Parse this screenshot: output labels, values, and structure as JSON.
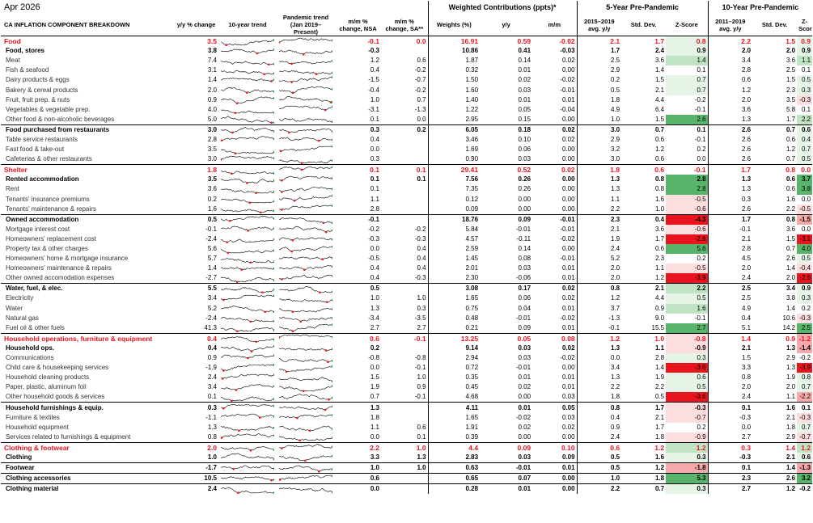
{
  "date": "Apr 2026",
  "group_headers": {
    "weights": "Weighted Contributions (ppts)*",
    "five_year": "5-Year Pre-Pandemic",
    "ten_year": "10-Year Pre-Pandemic"
  },
  "columns": {
    "label": "CA INFLATION COMPONENT BREAKDOWN",
    "yy": "y/y % change",
    "trend10": "10-year trend",
    "pandemic": "Pandemic trend (Jan 2019–Present)",
    "mm_nsa": "m/m % change, NSA",
    "mm_sa": "m/m % change, SA**",
    "weights": "Weights (%)",
    "w_yy": "y/y",
    "w_mm": "m/m",
    "avg5": "2015–2019 avg. y/y",
    "sd5": "Std. Dev.",
    "z5": "Z-Score",
    "avg10": "2011–2019 avg. y/y",
    "sd10": "Std. Dev.",
    "z10": "Z-Score"
  },
  "colors": {
    "red": "#e8141e",
    "green_strong": "#1e9a3c",
    "green_light": "#d6efd8",
    "red_strong": "#e8141e",
    "red_light": "#fbd8d8"
  },
  "rows": [
    {
      "label": "Food",
      "level": 0,
      "sep": "none",
      "yy": "3.5",
      "mm_nsa": "-0.1",
      "mm_sa": "0.0",
      "w": "16.91",
      "wyy": "0.59",
      "wmm": "-0.02",
      "a5": "2.1",
      "s5": "1.7",
      "z5": "0.8",
      "a10": "2.2",
      "s10": "1.5",
      "z10": "0.9"
    },
    {
      "label": "Food, stores",
      "level": 1,
      "yy": "3.8",
      "mm_nsa": "-0.3",
      "mm_sa": "",
      "w": "10.86",
      "wyy": "0.41",
      "wmm": "-0.03",
      "a5": "1.7",
      "s5": "2.4",
      "z5": "0.9",
      "a10": "2.0",
      "s10": "2.0",
      "z10": "0.9"
    },
    {
      "label": "Meat",
      "level": 2,
      "yy": "7.4",
      "mm_nsa": "1.2",
      "mm_sa": "0.6",
      "w": "1.87",
      "wyy": "0.14",
      "wmm": "0.02",
      "a5": "2.5",
      "s5": "3.6",
      "z5": "1.4",
      "a10": "3.4",
      "s10": "3.6",
      "z10": "1.1"
    },
    {
      "label": "Fish & seafood",
      "level": 2,
      "yy": "3.1",
      "mm_nsa": "0.4",
      "mm_sa": "-0.2",
      "w": "0.32",
      "wyy": "0.01",
      "wmm": "0.00",
      "a5": "2.9",
      "s5": "1.4",
      "z5": "0.1",
      "a10": "2.8",
      "s10": "2.5",
      "z10": "0.1"
    },
    {
      "label": "Dairy products & eggs",
      "level": 2,
      "yy": "1.4",
      "mm_nsa": "-1.5",
      "mm_sa": "-0.7",
      "w": "1.50",
      "wyy": "0.02",
      "wmm": "-0.02",
      "a5": "0.2",
      "s5": "1.5",
      "z5": "0.7",
      "a10": "0.6",
      "s10": "1.5",
      "z10": "0.5"
    },
    {
      "label": "Bakery & cereal products",
      "level": 2,
      "yy": "2.0",
      "mm_nsa": "-0.4",
      "mm_sa": "-0.2",
      "w": "1.60",
      "wyy": "0.03",
      "wmm": "-0.01",
      "a5": "0.5",
      "s5": "2.1",
      "z5": "0.7",
      "a10": "1.2",
      "s10": "2.3",
      "z10": "0.3"
    },
    {
      "label": "Fruit, fruit prep. & nuts",
      "level": 2,
      "yy": "0.9",
      "mm_nsa": "1.0",
      "mm_sa": "0.7",
      "w": "1.40",
      "wyy": "0.01",
      "wmm": "0.01",
      "a5": "1.8",
      "s5": "4.4",
      "z5": "-0.2",
      "a10": "2.0",
      "s10": "3.5",
      "z10": "-0.3"
    },
    {
      "label": "Vegetables & vegetable prep.",
      "level": 2,
      "yy": "4.0",
      "mm_nsa": "-3.1",
      "mm_sa": "-1.3",
      "w": "1.22",
      "wyy": "0.05",
      "wmm": "-0.04",
      "a5": "4.9",
      "s5": "6.4",
      "z5": "-0.1",
      "a10": "3.6",
      "s10": "5.8",
      "z10": "0.1"
    },
    {
      "label": "Other food & non-alcoholic beverages",
      "level": 2,
      "yy": "5.0",
      "mm_nsa": "0.1",
      "mm_sa": "0.0",
      "w": "2.95",
      "wyy": "0.15",
      "wmm": "0.00",
      "a5": "1.0",
      "s5": "1.5",
      "z5": "2.6",
      "a10": "1.3",
      "s10": "1.7",
      "z10": "2.2"
    },
    {
      "label": "Food purchased from restaurants",
      "level": 1,
      "sep": "thin",
      "yy": "3.0",
      "mm_nsa": "0.3",
      "mm_sa": "0.2",
      "w": "6.05",
      "wyy": "0.18",
      "wmm": "0.02",
      "a5": "3.0",
      "s5": "0.7",
      "z5": "0.1",
      "a10": "2.6",
      "s10": "0.7",
      "z10": "0.6"
    },
    {
      "label": "Table service restaurants",
      "level": 2,
      "yy": "2.8",
      "mm_nsa": "0.4",
      "mm_sa": "",
      "w": "3.46",
      "wyy": "0.10",
      "wmm": "0.02",
      "a5": "2.9",
      "s5": "0.6",
      "z5": "-0.1",
      "a10": "2.6",
      "s10": "0.6",
      "z10": "0.4"
    },
    {
      "label": "Fast food & take-out",
      "level": 2,
      "yy": "3.5",
      "mm_nsa": "0.0",
      "mm_sa": "",
      "w": "1.69",
      "wyy": "0.06",
      "wmm": "0.00",
      "a5": "3.2",
      "s5": "1.2",
      "z5": "0.2",
      "a10": "2.6",
      "s10": "1.2",
      "z10": "0.7"
    },
    {
      "label": "Cafeterias & other restaurants",
      "level": 2,
      "yy": "3.0",
      "mm_nsa": "0.3",
      "mm_sa": "",
      "w": "0.90",
      "wyy": "0.03",
      "wmm": "0.00",
      "a5": "3.0",
      "s5": "0.6",
      "z5": "0.0",
      "a10": "2.6",
      "s10": "0.7",
      "z10": "0.5"
    },
    {
      "label": "Shelter",
      "level": 0,
      "sep": "sep",
      "yy": "1.8",
      "mm_nsa": "0.1",
      "mm_sa": "0.1",
      "w": "29.41",
      "wyy": "0.52",
      "wmm": "0.02",
      "a5": "1.8",
      "s5": "0.6",
      "z5": "-0.1",
      "a10": "1.7",
      "s10": "0.8",
      "z10": "0.0"
    },
    {
      "label": "Rented accommodation",
      "level": 1,
      "yy": "3.5",
      "mm_nsa": "0.1",
      "mm_sa": "0.1",
      "w": "7.56",
      "wyy": "0.26",
      "wmm": "0.00",
      "a5": "1.3",
      "s5": "0.8",
      "z5": "2.8",
      "a10": "1.3",
      "s10": "0.6",
      "z10": "3.7"
    },
    {
      "label": "Rent",
      "level": 2,
      "yy": "3.6",
      "mm_nsa": "0.1",
      "mm_sa": "",
      "w": "7.35",
      "wyy": "0.26",
      "wmm": "0.00",
      "a5": "1.3",
      "s5": "0.8",
      "z5": "2.8",
      "a10": "1.3",
      "s10": "0.6",
      "z10": "3.8"
    },
    {
      "label": "Tenants' insurance premiums",
      "level": 2,
      "yy": "0.2",
      "mm_nsa": "1.1",
      "mm_sa": "",
      "w": "0.12",
      "wyy": "0.00",
      "wmm": "0.00",
      "a5": "1.1",
      "s5": "1.6",
      "z5": "-0.5",
      "a10": "0.3",
      "s10": "1.6",
      "z10": "0.0"
    },
    {
      "label": "Tenants' maintenance & repairs",
      "level": 2,
      "yy": "1.6",
      "mm_nsa": "2.8",
      "mm_sa": "",
      "w": "0.09",
      "wyy": "0.00",
      "wmm": "0.00",
      "a5": "2.2",
      "s5": "1.0",
      "z5": "-0.6",
      "a10": "2.6",
      "s10": "2.2",
      "z10": "-0.5"
    },
    {
      "label": "Owned accommodation",
      "level": 1,
      "sep": "thin",
      "yy": "0.5",
      "mm_nsa": "-0.1",
      "mm_sa": "",
      "w": "18.76",
      "wyy": "0.09",
      "wmm": "-0.01",
      "a5": "2.3",
      "s5": "0.4",
      "z5": "-4.3",
      "a10": "1.7",
      "s10": "0.8",
      "z10": "-1.5"
    },
    {
      "label": "Mortgage interest cost",
      "level": 2,
      "yy": "-0.1",
      "mm_nsa": "-0.2",
      "mm_sa": "-0.2",
      "w": "5.84",
      "wyy": "-0.01",
      "wmm": "-0.01",
      "a5": "2.1",
      "s5": "3.6",
      "z5": "-0.6",
      "a10": "-0.1",
      "s10": "3.6",
      "z10": "0.0"
    },
    {
      "label": "Homeowners' replacement cost",
      "level": 2,
      "yy": "-2.4",
      "mm_nsa": "-0.3",
      "mm_sa": "-0.3",
      "w": "4.57",
      "wyy": "-0.11",
      "wmm": "-0.02",
      "a5": "1.9",
      "s5": "1.7",
      "z5": "-2.6",
      "a10": "2.1",
      "s10": "1.5",
      "z10": "-3.1"
    },
    {
      "label": "Property tax & other charges",
      "level": 2,
      "yy": "5.6",
      "mm_nsa": "0.0",
      "mm_sa": "0.4",
      "w": "2.59",
      "wyy": "0.14",
      "wmm": "0.00",
      "a5": "2.4",
      "s5": "0.6",
      "z5": "5.6",
      "a10": "2.8",
      "s10": "0.7",
      "z10": "4.0"
    },
    {
      "label": "Homeowners' home & mortgage insurance",
      "level": 2,
      "yy": "5.7",
      "mm_nsa": "-0.5",
      "mm_sa": "0.4",
      "w": "1.45",
      "wyy": "0.08",
      "wmm": "-0.01",
      "a5": "5.2",
      "s5": "2.3",
      "z5": "0.2",
      "a10": "4.5",
      "s10": "2.6",
      "z10": "0.5"
    },
    {
      "label": "Homeowners' maintenance & repairs",
      "level": 2,
      "yy": "1.4",
      "mm_nsa": "0.4",
      "mm_sa": "0.4",
      "w": "2.01",
      "wyy": "0.03",
      "wmm": "0.01",
      "a5": "2.0",
      "s5": "1.1",
      "z5": "-0.5",
      "a10": "2.0",
      "s10": "1.4",
      "z10": "-0.4"
    },
    {
      "label": "Other owned accomodation expenses",
      "level": 2,
      "yy": "-2.7",
      "mm_nsa": "0.4",
      "mm_sa": "-0.3",
      "w": "2.30",
      "wyy": "-0.06",
      "wmm": "0.01",
      "a5": "2.0",
      "s5": "1.2",
      "z5": "-3.9",
      "a10": "2.4",
      "s10": "2.0",
      "z10": "-2.6"
    },
    {
      "label": "Water, fuel, & elec.",
      "level": 1,
      "sep": "thin",
      "yy": "5.5",
      "mm_nsa": "0.5",
      "mm_sa": "",
      "w": "3.08",
      "wyy": "0.17",
      "wmm": "0.02",
      "a5": "0.8",
      "s5": "2.1",
      "z5": "2.2",
      "a10": "2.5",
      "s10": "3.4",
      "z10": "0.9"
    },
    {
      "label": "Electricity",
      "level": 2,
      "yy": "3.4",
      "mm_nsa": "1.0",
      "mm_sa": "1.0",
      "w": "1.65",
      "wyy": "0.06",
      "wmm": "0.02",
      "a5": "1.2",
      "s5": "4.4",
      "z5": "0.5",
      "a10": "2.5",
      "s10": "3.8",
      "z10": "0.3"
    },
    {
      "label": "Water",
      "level": 2,
      "yy": "5.2",
      "mm_nsa": "1.3",
      "mm_sa": "0.3",
      "w": "0.75",
      "wyy": "0.04",
      "wmm": "0.01",
      "a5": "3.7",
      "s5": "0.9",
      "z5": "1.6",
      "a10": "4.9",
      "s10": "1.4",
      "z10": "0.2"
    },
    {
      "label": "Natural gas",
      "level": 2,
      "yy": "-2.4",
      "mm_nsa": "-3.4",
      "mm_sa": "-3.5",
      "w": "0.48",
      "wyy": "-0.01",
      "wmm": "-0.02",
      "a5": "-1.3",
      "s5": "9.0",
      "z5": "-0.1",
      "a10": "0.4",
      "s10": "10.6",
      "z10": "-0.3"
    },
    {
      "label": "Fuel oil & other fuels",
      "level": 2,
      "yy": "41.3",
      "mm_nsa": "2.7",
      "mm_sa": "2.7",
      "w": "0.21",
      "wyy": "0.09",
      "wmm": "0.01",
      "a5": "-0.1",
      "s5": "15.5",
      "z5": "2.7",
      "a10": "5.1",
      "s10": "14.2",
      "z10": "2.5"
    },
    {
      "label": "Household operations, furniture & equipment",
      "level": 0,
      "sep": "sep",
      "yy": "0.4",
      "mm_nsa": "0.6",
      "mm_sa": "-0.1",
      "w": "13.25",
      "wyy": "0.05",
      "wmm": "0.08",
      "a5": "1.2",
      "s5": "1.0",
      "z5": "-0.8",
      "a10": "1.4",
      "s10": "0.9",
      "z10": "-1.2"
    },
    {
      "label": "Household ops.",
      "level": 1,
      "yy": "0.4",
      "mm_nsa": "0.2",
      "mm_sa": "",
      "w": "9.14",
      "wyy": "0.03",
      "wmm": "0.02",
      "a5": "1.3",
      "s5": "1.1",
      "z5": "-0.9",
      "a10": "2.1",
      "s10": "1.3",
      "z10": "-1.4"
    },
    {
      "label": "Communications",
      "level": 2,
      "yy": "0.9",
      "mm_nsa": "-0.8",
      "mm_sa": "-0.8",
      "w": "2.94",
      "wyy": "0.03",
      "wmm": "-0.02",
      "a5": "0.0",
      "s5": "2.8",
      "z5": "0.3",
      "a10": "1.5",
      "s10": "2.9",
      "z10": "-0.2"
    },
    {
      "label": "Child care & housekeeping services",
      "level": 2,
      "yy": "-1.9",
      "mm_nsa": "0.0",
      "mm_sa": "-0.1",
      "w": "0.72",
      "wyy": "-0.01",
      "wmm": "0.00",
      "a5": "3.4",
      "s5": "1.4",
      "z5": "-3.9",
      "a10": "3.3",
      "s10": "1.3",
      "z10": "-3.9"
    },
    {
      "label": "Household cleaning products",
      "level": 2,
      "yy": "2.4",
      "mm_nsa": "1.5",
      "mm_sa": "1.0",
      "w": "0.35",
      "wyy": "0.01",
      "wmm": "0.01",
      "a5": "1.3",
      "s5": "1.9",
      "z5": "0.6",
      "a10": "0.8",
      "s10": "1.9",
      "z10": "0.8"
    },
    {
      "label": "Paper, plastic, aluminum foil",
      "level": 2,
      "yy": "3.4",
      "mm_nsa": "1.9",
      "mm_sa": "0.9",
      "w": "0.45",
      "wyy": "0.02",
      "wmm": "0.01",
      "a5": "2.2",
      "s5": "2.2",
      "z5": "0.5",
      "a10": "2.0",
      "s10": "2.0",
      "z10": "0.7"
    },
    {
      "label": "Other household goods & services",
      "level": 2,
      "yy": "0.1",
      "mm_nsa": "0.7",
      "mm_sa": "-0.1",
      "w": "4.68",
      "wyy": "0.00",
      "wmm": "0.03",
      "a5": "1.8",
      "s5": "0.5",
      "z5": "-3.6",
      "a10": "2.4",
      "s10": "1.1",
      "z10": "-2.2"
    },
    {
      "label": "Household furnishings & equip.",
      "level": 1,
      "sep": "thin",
      "yy": "0.3",
      "mm_nsa": "1.3",
      "mm_sa": "",
      "w": "4.11",
      "wyy": "0.01",
      "wmm": "0.05",
      "a5": "0.8",
      "s5": "1.7",
      "z5": "-0.3",
      "a10": "0.1",
      "s10": "1.6",
      "z10": "0.1"
    },
    {
      "label": "Furniture & textiles",
      "level": 2,
      "yy": "-1.1",
      "mm_nsa": "1.8",
      "mm_sa": "",
      "w": "1.65",
      "wyy": "-0.02",
      "wmm": "0.03",
      "a5": "0.4",
      "s5": "2.1",
      "z5": "-0.7",
      "a10": "-0.3",
      "s10": "2.1",
      "z10": "-0.3"
    },
    {
      "label": "Household equipment",
      "level": 2,
      "yy": "1.3",
      "mm_nsa": "1.1",
      "mm_sa": "0.6",
      "w": "1.91",
      "wyy": "0.02",
      "wmm": "0.02",
      "a5": "0.9",
      "s5": "1.7",
      "z5": "0.2",
      "a10": "0.0",
      "s10": "1.8",
      "z10": "0.7"
    },
    {
      "label": "Services related to furnishings & equipment",
      "level": 2,
      "yy": "0.8",
      "mm_nsa": "0.0",
      "mm_sa": "0.1",
      "w": "0.39",
      "wyy": "0.00",
      "wmm": "0.00",
      "a5": "2.4",
      "s5": "1.8",
      "z5": "-0.9",
      "a10": "2.7",
      "s10": "2.9",
      "z10": "-0.7"
    },
    {
      "label": "Clothing & footwear",
      "level": 0,
      "sep": "sep",
      "yy": "2.0",
      "mm_nsa": "2.2",
      "mm_sa": "1.0",
      "w": "4.4",
      "wyy": "0.09",
      "wmm": "0.10",
      "a5": "0.6",
      "s5": "1.2",
      "z5": "1.2",
      "a10": "0.3",
      "s10": "1.4",
      "z10": "1.2"
    },
    {
      "label": "Clothing",
      "level": 1,
      "yy": "1.0",
      "mm_nsa": "3.3",
      "mm_sa": "1.3",
      "w": "2.83",
      "wyy": "0.03",
      "wmm": "0.09",
      "a5": "0.5",
      "s5": "1.6",
      "z5": "0.3",
      "a10": "-0.3",
      "s10": "2.1",
      "z10": "0.6"
    },
    {
      "label": "Footwear",
      "level": 1,
      "sep": "thin",
      "yy": "-1.7",
      "mm_nsa": "1.0",
      "mm_sa": "1.0",
      "w": "0.63",
      "wyy": "-0.01",
      "wmm": "0.01",
      "a5": "0.5",
      "s5": "1.2",
      "z5": "-1.8",
      "a10": "0.1",
      "s10": "1.4",
      "z10": "-1.3"
    },
    {
      "label": "Clothing accessories",
      "level": 1,
      "sep": "thin",
      "yy": "10.5",
      "mm_nsa": "0.6",
      "mm_sa": "",
      "w": "0.65",
      "wyy": "0.07",
      "wmm": "0.00",
      "a5": "1.0",
      "s5": "1.8",
      "z5": "5.3",
      "a10": "2.3",
      "s10": "2.6",
      "z10": "3.2"
    },
    {
      "label": "Clothing material",
      "level": 1,
      "sep": "thin",
      "yy": "2.4",
      "mm_nsa": "0.0",
      "mm_sa": "",
      "w": "0.28",
      "wyy": "0.01",
      "wmm": "0.00",
      "a5": "2.2",
      "s5": "0.7",
      "z5": "0.3",
      "a10": "2.7",
      "s10": "1.2",
      "z10": "-0.2"
    }
  ]
}
